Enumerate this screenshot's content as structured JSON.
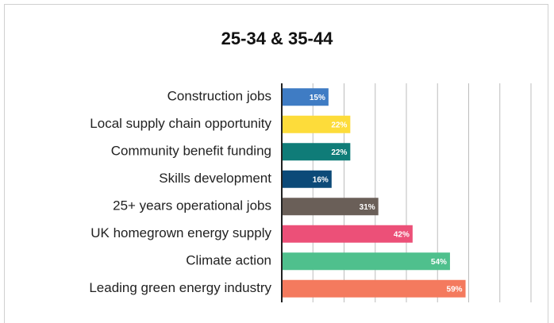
{
  "chart_data": {
    "type": "barh",
    "title": "25-34 & 35-44",
    "categories": [
      "Construction jobs",
      "Local supply chain opportunity",
      "Community benefit funding",
      "Skills development",
      "25+ years operational jobs",
      "UK homegrown energy supply",
      "Climate action",
      "Leading green energy industry"
    ],
    "values": [
      15,
      22,
      22,
      16,
      31,
      42,
      54,
      59
    ],
    "value_labels": [
      "15%",
      "22%",
      "22%",
      "16%",
      "31%",
      "42%",
      "54%",
      "59%"
    ],
    "colors": [
      "#3f7cc4",
      "#fddc3a",
      "#0f7c78",
      "#0c4a78",
      "#6a5f58",
      "#ec5078",
      "#4fc08d",
      "#f47a5e"
    ],
    "xlim": [
      0,
      80
    ],
    "xticks": [
      0,
      10,
      20,
      30,
      40,
      50,
      60,
      70,
      80
    ],
    "grid": true
  }
}
